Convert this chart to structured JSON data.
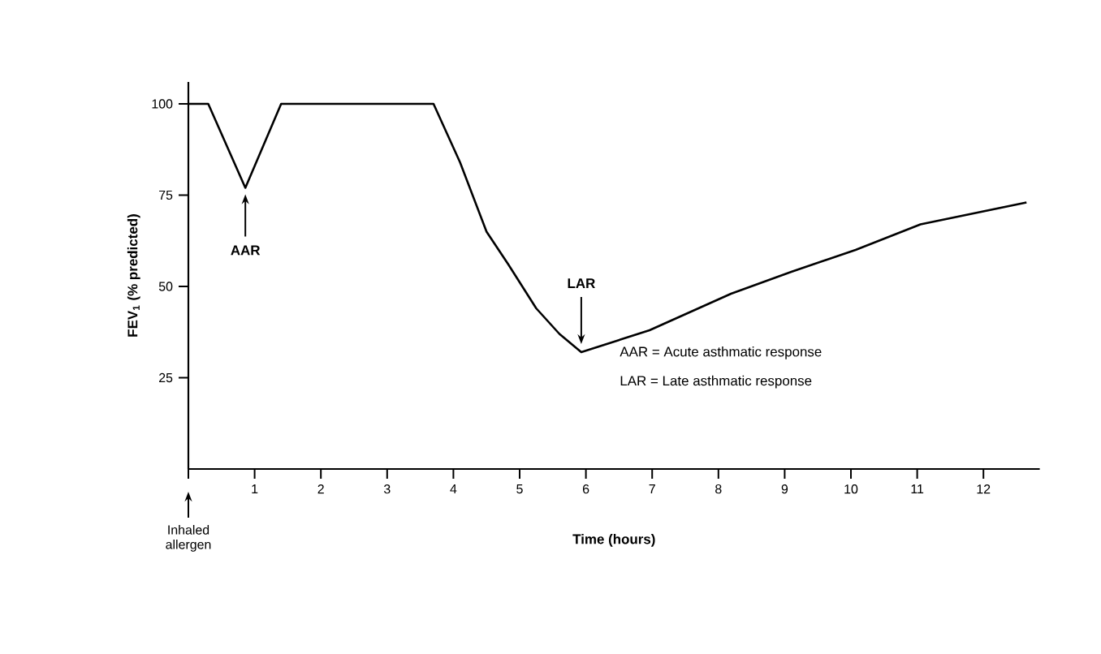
{
  "chart_data": {
    "type": "line",
    "xlabel": "Time (hours)",
    "ylabel": "FEV$_{1}$ (% predicted)",
    "x": [
      0,
      0.3,
      0.86,
      1.4,
      3.7,
      3.9,
      4.1,
      4.5,
      4.83,
      5.25,
      5.6,
      5.93,
      6.96,
      8.19,
      9.1,
      10.07,
      11.05,
      12.65
    ],
    "values": [
      100,
      100,
      77,
      100,
      100,
      92,
      84,
      65,
      56,
      44,
      37,
      32,
      38,
      48,
      54,
      60,
      67,
      73
    ],
    "color": "#000000",
    "xlim": [
      0,
      12.85
    ],
    "ylim": [
      0,
      106
    ],
    "xticks": [
      {
        "value": 0,
        "label": null
      },
      1,
      2,
      3,
      4,
      5,
      6,
      7,
      8,
      9,
      10,
      11,
      12
    ],
    "yticks": [
      25,
      50,
      75,
      100
    ],
    "grid": false,
    "marker": "none",
    "line_style": "solid",
    "annotations": [
      {
        "text": "AAR",
        "x": 0.86,
        "y": 77
      },
      {
        "text": "LAR",
        "x": 5.93,
        "y": 32
      },
      "Inhaled allergen",
      "AAR = Acute asthmatic response",
      "LAR = Late asthmatic response"
    ]
  }
}
